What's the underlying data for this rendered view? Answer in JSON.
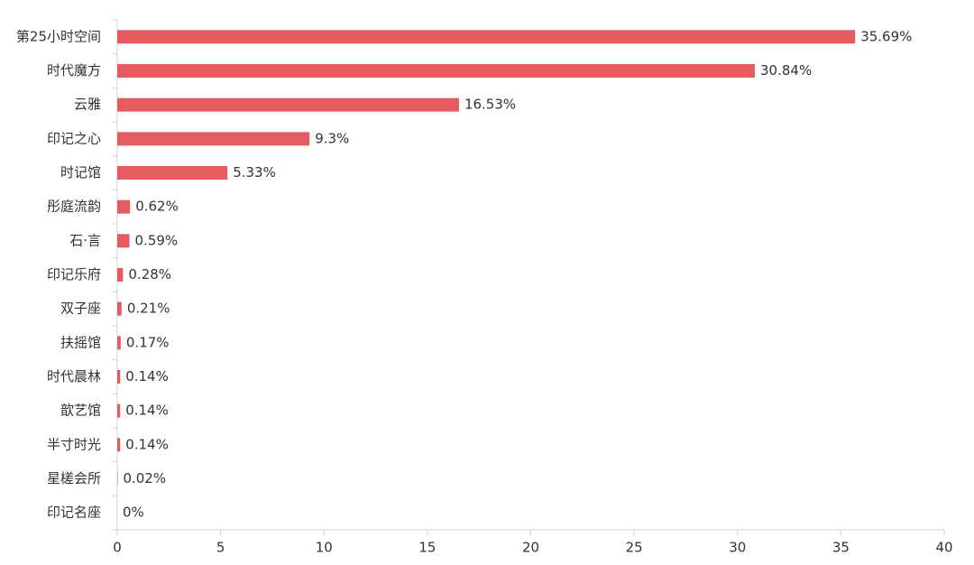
{
  "chart_data": {
    "type": "hbar",
    "categories": [
      "第25小时空间",
      "时代魔方",
      "云雅",
      "印记之心",
      "时记馆",
      "彤庭流韵",
      "石·言",
      "印记乐府",
      "双子座",
      "扶摇馆",
      "时代晨林",
      "歆艺馆",
      "半寸时光",
      "星槎会所",
      "印记名座"
    ],
    "values": [
      35.69,
      30.84,
      16.53,
      9.3,
      5.33,
      0.62,
      0.59,
      0.28,
      0.21,
      0.17,
      0.14,
      0.14,
      0.14,
      0.02,
      0
    ],
    "value_labels": [
      "35.69%",
      "30.84%",
      "16.53%",
      "9.3%",
      "5.33%",
      "0.62%",
      "0.59%",
      "0.28%",
      "0.21%",
      "0.17%",
      "0.14%",
      "0.14%",
      "0.14%",
      "0.02%",
      "0%"
    ],
    "color": "#e45c5f",
    "xlim": [
      0,
      40
    ],
    "xticks": [
      0,
      5,
      10,
      15,
      20,
      25,
      30,
      35,
      40
    ]
  }
}
